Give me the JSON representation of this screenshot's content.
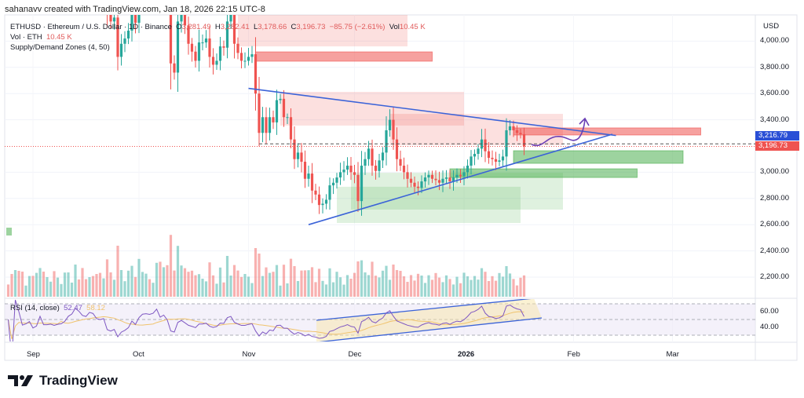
{
  "header": {
    "credit": "sahanavv created with TradingView.com, Jan 18, 2026 22:15 UTC-8",
    "symbol": "ETHUSD · Ethereum / U.S. Dollar · 1D · Binance",
    "open": "3,281.49",
    "high": "3,282.41",
    "low": "3,178.66",
    "close": "3,196.73",
    "change": "−85.75 (−2.61%)",
    "vol_label": "Vol",
    "vol": "10.45 K",
    "vol_indicator": "Vol · ETH",
    "vol_indicator_value": "10.45 K",
    "zones_indicator": "Supply/Demand Zones (4, 50)"
  },
  "rsi": {
    "label": "RSI (14, close)",
    "value": "52.47",
    "ma_value": "58.12",
    "color": "#7e57c2",
    "ma_color": "#f0c36d"
  },
  "price_axis": {
    "currency": "USD",
    "ticks": [
      "4,000.00",
      "3,800.00",
      "3,600.00",
      "3,400.00",
      "3,000.00",
      "2,800.00",
      "2,600.00",
      "2,400.00",
      "2,200.00"
    ],
    "current_labels": [
      {
        "value": "3,216.79",
        "color": "#2a4fd6"
      },
      {
        "value": "3,196.73",
        "color": "#ef5350"
      }
    ],
    "rsi_ticks": [
      "60.00",
      "40.00"
    ]
  },
  "time_axis": {
    "ticks": [
      "Sep",
      "Oct",
      "Nov",
      "Dec",
      "2026",
      "Feb",
      "Mar"
    ]
  },
  "branding": {
    "name": "TradingView"
  },
  "colors": {
    "up": "#26a69a",
    "down": "#ef5350",
    "supply": "#ef5350",
    "demand": "#4caf50",
    "trendline": "#3b63d8"
  },
  "chart_data": {
    "type": "candlestick",
    "symbol": "ETHUSD",
    "interval": "1D",
    "start_date": "2025-08-25",
    "closes": [
      4400,
      4350,
      4500,
      4450,
      4350,
      4360,
      4380,
      4300,
      4320,
      4450,
      4300,
      4300,
      4310,
      4280,
      4300,
      4310,
      4350,
      4450,
      4500,
      4650,
      4600,
      4520,
      4500,
      4600,
      4580,
      4480,
      4460,
      4480,
      4200,
      4150,
      4180,
      3880,
      3980,
      4020,
      4080,
      4250,
      4140,
      4350,
      4480,
      4500,
      4480,
      4520,
      4680,
      4450,
      4530,
      4370,
      3830,
      3760,
      4150,
      4240,
      4120,
      3980,
      3920,
      3850,
      3990,
      3990,
      4020,
      3880,
      3820,
      3850,
      3960,
      3950,
      4150,
      4200,
      3980,
      3910,
      3850,
      3850,
      3880,
      3900,
      3600,
      3300,
      3420,
      3300,
      3420,
      3380,
      3550,
      3560,
      3420,
      3420,
      3250,
      3100,
      3150,
      3080,
      2950,
      2990,
      2860,
      2830,
      2750,
      2760,
      2790,
      2900,
      2920,
      2960,
      3000,
      3020,
      3050,
      3000,
      2980,
      2780,
      3050,
      3100,
      3180,
      3050,
      3010,
      3090,
      3150,
      3320,
      3400,
      3250,
      3100,
      3050,
      3000,
      2950,
      2920,
      2890,
      2880,
      2930,
      2960,
      2980,
      2950,
      2940,
      2920,
      2950,
      2960,
      2930,
      2960,
      2980,
      2970,
      3000,
      3050,
      3120,
      3140,
      3180,
      3250,
      3160,
      3110,
      3100,
      3080,
      3090,
      3120,
      3320,
      3350,
      3320,
      3300,
      3290,
      3196.73
    ],
    "ylim": [
      2050,
      4200
    ],
    "price_axis_ticks": [
      4000,
      3800,
      3600,
      3400,
      3000,
      2800,
      2600,
      2400,
      2200
    ],
    "supply_zones": [
      {
        "from": "2025-10-29",
        "to": "2025-12-16",
        "top": 4200,
        "bottom": 3960,
        "strength": "weak"
      },
      {
        "from": "2025-11-03",
        "to": "2025-12-23",
        "top": 3918,
        "bottom": 3847,
        "strength": "strong"
      },
      {
        "from": "2025-11-10",
        "to": "2026-01-01",
        "top": 3613,
        "bottom": 3356,
        "strength": "weak"
      },
      {
        "from": "2025-12-11",
        "to": "2026-01-29",
        "top": 3445,
        "bottom": 3206,
        "strength": "weak"
      },
      {
        "from": "2026-01-15",
        "to": "2026-03-09",
        "top": 3338,
        "bottom": 3284,
        "strength": "strong"
      }
    ],
    "demand_zones": [
      {
        "from": "2026-01-15",
        "to": "2026-03-04",
        "top": 3164,
        "bottom": 3068,
        "strength": "strong"
      },
      {
        "from": "2025-12-28",
        "to": "2026-02-19",
        "top": 3026,
        "bottom": 2960,
        "strength": "strong"
      },
      {
        "from": "2025-11-30",
        "to": "2026-01-29",
        "top": 2996,
        "bottom": 2715,
        "strength": "weak"
      },
      {
        "from": "2025-11-26",
        "to": "2026-01-17",
        "top": 2889,
        "bottom": 2613,
        "strength": "weak"
      }
    ],
    "trendlines": [
      {
        "from": [
          "2025-11-01",
          3640
        ],
        "to": [
          "2026-02-13",
          3280
        ]
      },
      {
        "from": [
          "2025-11-18",
          2600
        ],
        "to": [
          "2026-02-12",
          3290
        ]
      }
    ],
    "marked_price_line": 3216.79
  }
}
